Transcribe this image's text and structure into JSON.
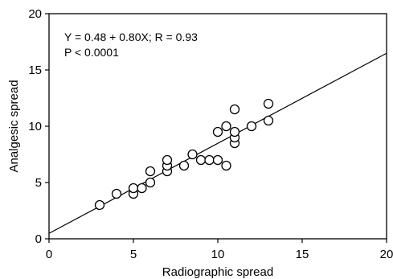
{
  "chart_data": {
    "type": "scatter",
    "xlabel": "Radiographic spread",
    "ylabel": "Analgesic spread",
    "xlim": [
      0,
      20
    ],
    "ylim": [
      0,
      20
    ],
    "xticks": [
      "0",
      "5",
      "10",
      "15",
      "20"
    ],
    "yticks": [
      "0",
      "5",
      "10",
      "15",
      "20"
    ],
    "grid": false,
    "annotations": [
      "Y = 0.48 + 0.80X; R = 0.93",
      "P < 0.0001"
    ],
    "points": [
      {
        "x": 3,
        "y": 3
      },
      {
        "x": 4,
        "y": 4
      },
      {
        "x": 5,
        "y": 4
      },
      {
        "x": 5,
        "y": 4.5
      },
      {
        "x": 5.5,
        "y": 4.5
      },
      {
        "x": 6,
        "y": 5
      },
      {
        "x": 6,
        "y": 6
      },
      {
        "x": 7,
        "y": 6
      },
      {
        "x": 7,
        "y": 6.5
      },
      {
        "x": 7,
        "y": 7
      },
      {
        "x": 8,
        "y": 6.5
      },
      {
        "x": 8.5,
        "y": 7.5
      },
      {
        "x": 9,
        "y": 7
      },
      {
        "x": 9.5,
        "y": 7
      },
      {
        "x": 10,
        "y": 7
      },
      {
        "x": 10.5,
        "y": 6.5
      },
      {
        "x": 10,
        "y": 9.5
      },
      {
        "x": 10.5,
        "y": 10
      },
      {
        "x": 11,
        "y": 8.5
      },
      {
        "x": 11,
        "y": 9
      },
      {
        "x": 11,
        "y": 9.5
      },
      {
        "x": 11,
        "y": 11.5
      },
      {
        "x": 12,
        "y": 10
      },
      {
        "x": 13,
        "y": 10.5
      },
      {
        "x": 13,
        "y": 12
      }
    ],
    "regression": {
      "intercept": 0.48,
      "slope": 0.8
    }
  }
}
